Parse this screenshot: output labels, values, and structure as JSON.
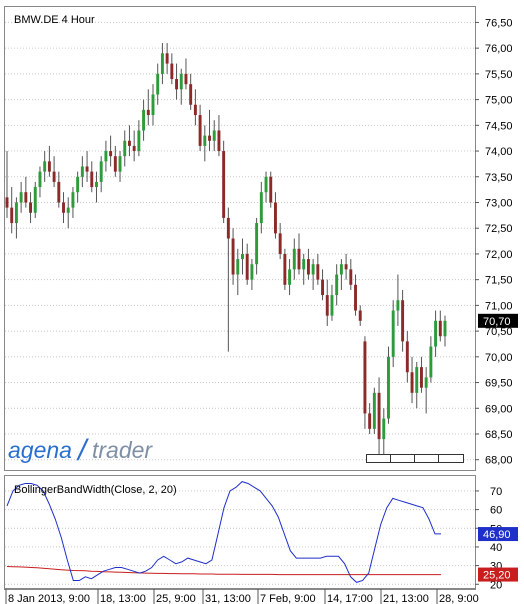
{
  "colors": {
    "up": "#2e9b3a",
    "down": "#8c2a2a",
    "bbw_line": "#1f2fc9",
    "threshold_line": "#c81e1e",
    "last_price_bg": "#000000",
    "bbw_label_bg": "#1f2fc9",
    "threshold_label_bg": "#c81e1e",
    "logo_blue": "#2a6fd0",
    "logo_gray": "#7f8fa6",
    "grid": "#c8c8c8"
  },
  "chart_data": [
    {
      "type": "candlestick",
      "title": "BMW.DE 4 Hour",
      "y_range": [
        67.8,
        76.8
      ],
      "y_ticks": [
        "76,50",
        "76,00",
        "75,50",
        "75,00",
        "74,50",
        "74,00",
        "73,50",
        "73,00",
        "72,50",
        "72,00",
        "71,50",
        "71,00",
        "70,50",
        "70,00",
        "69,50",
        "69,00",
        "68,50",
        "68,00"
      ],
      "last_price": "70,70",
      "x_labels": [
        "8 Jan 2013, 9:00",
        "18, 13:00",
        "25, 9:00",
        "31, 13:00",
        "7 Feb, 9:00",
        "14, 17:00",
        "21, 13:00",
        "28, 9:00"
      ],
      "candles": [
        {
          "o": 73.1,
          "h": 74.0,
          "l": 72.7,
          "c": 72.9
        },
        {
          "o": 72.9,
          "h": 73.3,
          "l": 72.4,
          "c": 72.6
        },
        {
          "o": 72.6,
          "h": 73.1,
          "l": 72.3,
          "c": 73.0
        },
        {
          "o": 73.0,
          "h": 73.4,
          "l": 72.8,
          "c": 73.2
        },
        {
          "o": 73.2,
          "h": 73.5,
          "l": 72.9,
          "c": 73.0
        },
        {
          "o": 73.0,
          "h": 73.2,
          "l": 72.6,
          "c": 72.8
        },
        {
          "o": 72.8,
          "h": 73.4,
          "l": 72.7,
          "c": 73.3
        },
        {
          "o": 73.3,
          "h": 73.7,
          "l": 73.1,
          "c": 73.6
        },
        {
          "o": 73.6,
          "h": 74.0,
          "l": 73.4,
          "c": 73.8
        },
        {
          "o": 73.8,
          "h": 74.1,
          "l": 73.5,
          "c": 73.6
        },
        {
          "o": 73.6,
          "h": 73.9,
          "l": 73.3,
          "c": 73.4
        },
        {
          "o": 73.4,
          "h": 73.6,
          "l": 72.9,
          "c": 73.0
        },
        {
          "o": 73.0,
          "h": 73.2,
          "l": 72.6,
          "c": 72.8
        },
        {
          "o": 72.8,
          "h": 73.1,
          "l": 72.5,
          "c": 72.9
        },
        {
          "o": 72.9,
          "h": 73.3,
          "l": 72.7,
          "c": 73.2
        },
        {
          "o": 73.2,
          "h": 73.6,
          "l": 73.0,
          "c": 73.5
        },
        {
          "o": 73.5,
          "h": 73.9,
          "l": 73.3,
          "c": 73.7
        },
        {
          "o": 73.7,
          "h": 74.0,
          "l": 73.4,
          "c": 73.6
        },
        {
          "o": 73.6,
          "h": 73.8,
          "l": 73.2,
          "c": 73.3
        },
        {
          "o": 73.3,
          "h": 73.6,
          "l": 73.0,
          "c": 73.4
        },
        {
          "o": 73.4,
          "h": 73.9,
          "l": 73.2,
          "c": 73.8
        },
        {
          "o": 73.8,
          "h": 74.2,
          "l": 73.6,
          "c": 74.0
        },
        {
          "o": 74.0,
          "h": 74.3,
          "l": 73.7,
          "c": 73.9
        },
        {
          "o": 73.9,
          "h": 74.1,
          "l": 73.5,
          "c": 73.6
        },
        {
          "o": 73.6,
          "h": 74.0,
          "l": 73.4,
          "c": 73.9
        },
        {
          "o": 73.9,
          "h": 74.4,
          "l": 73.7,
          "c": 74.2
        },
        {
          "o": 74.2,
          "h": 74.5,
          "l": 73.9,
          "c": 74.1
        },
        {
          "o": 74.1,
          "h": 74.4,
          "l": 73.8,
          "c": 74.0
        },
        {
          "o": 74.0,
          "h": 74.6,
          "l": 73.9,
          "c": 74.4
        },
        {
          "o": 74.4,
          "h": 75.0,
          "l": 74.2,
          "c": 74.8
        },
        {
          "o": 74.8,
          "h": 75.2,
          "l": 74.5,
          "c": 74.7
        },
        {
          "o": 74.7,
          "h": 75.3,
          "l": 74.5,
          "c": 75.1
        },
        {
          "o": 75.1,
          "h": 75.7,
          "l": 74.9,
          "c": 75.5
        },
        {
          "o": 75.5,
          "h": 76.1,
          "l": 75.3,
          "c": 75.9
        },
        {
          "o": 75.9,
          "h": 76.1,
          "l": 75.5,
          "c": 75.7
        },
        {
          "o": 75.7,
          "h": 75.9,
          "l": 75.3,
          "c": 75.4
        },
        {
          "o": 75.4,
          "h": 75.7,
          "l": 75.0,
          "c": 75.2
        },
        {
          "o": 75.2,
          "h": 75.6,
          "l": 74.9,
          "c": 75.5
        },
        {
          "o": 75.5,
          "h": 75.8,
          "l": 75.2,
          "c": 75.3
        },
        {
          "o": 75.3,
          "h": 75.5,
          "l": 74.8,
          "c": 74.9
        },
        {
          "o": 74.9,
          "h": 75.2,
          "l": 74.5,
          "c": 74.7
        },
        {
          "o": 74.7,
          "h": 74.9,
          "l": 74.0,
          "c": 74.1
        },
        {
          "o": 74.1,
          "h": 74.5,
          "l": 73.8,
          "c": 74.3
        },
        {
          "o": 74.3,
          "h": 74.8,
          "l": 74.0,
          "c": 74.2
        },
        {
          "o": 74.2,
          "h": 74.6,
          "l": 74.0,
          "c": 74.4
        },
        {
          "o": 74.4,
          "h": 74.7,
          "l": 73.9,
          "c": 74.0
        },
        {
          "o": 74.0,
          "h": 74.2,
          "l": 72.6,
          "c": 72.7
        },
        {
          "o": 72.7,
          "h": 72.9,
          "l": 70.1,
          "c": 72.3
        },
        {
          "o": 72.3,
          "h": 72.5,
          "l": 71.4,
          "c": 71.6
        },
        {
          "o": 71.6,
          "h": 72.1,
          "l": 71.2,
          "c": 71.9
        },
        {
          "o": 71.9,
          "h": 72.3,
          "l": 71.6,
          "c": 72.0
        },
        {
          "o": 72.0,
          "h": 72.2,
          "l": 71.4,
          "c": 71.5
        },
        {
          "o": 71.5,
          "h": 71.9,
          "l": 71.3,
          "c": 71.8
        },
        {
          "o": 71.8,
          "h": 72.7,
          "l": 71.6,
          "c": 72.6
        },
        {
          "o": 72.6,
          "h": 73.4,
          "l": 72.4,
          "c": 73.2
        },
        {
          "o": 73.2,
          "h": 73.6,
          "l": 73.0,
          "c": 73.5
        },
        {
          "o": 73.5,
          "h": 73.6,
          "l": 72.9,
          "c": 73.0
        },
        {
          "o": 73.0,
          "h": 73.2,
          "l": 72.3,
          "c": 72.4
        },
        {
          "o": 72.4,
          "h": 72.6,
          "l": 71.9,
          "c": 72.0
        },
        {
          "o": 72.0,
          "h": 72.1,
          "l": 71.3,
          "c": 71.4
        },
        {
          "o": 71.4,
          "h": 71.9,
          "l": 71.2,
          "c": 71.7
        },
        {
          "o": 71.7,
          "h": 72.3,
          "l": 71.5,
          "c": 72.1
        },
        {
          "o": 72.1,
          "h": 72.4,
          "l": 71.6,
          "c": 71.7
        },
        {
          "o": 71.7,
          "h": 72.0,
          "l": 71.4,
          "c": 71.9
        },
        {
          "o": 71.9,
          "h": 72.1,
          "l": 71.5,
          "c": 71.6
        },
        {
          "o": 71.6,
          "h": 71.9,
          "l": 71.3,
          "c": 71.8
        },
        {
          "o": 71.8,
          "h": 72.0,
          "l": 71.4,
          "c": 71.5
        },
        {
          "o": 71.5,
          "h": 71.7,
          "l": 71.1,
          "c": 71.2
        },
        {
          "o": 71.2,
          "h": 71.5,
          "l": 70.6,
          "c": 70.8
        },
        {
          "o": 70.8,
          "h": 71.4,
          "l": 70.7,
          "c": 71.2
        },
        {
          "o": 71.2,
          "h": 71.8,
          "l": 71.0,
          "c": 71.6
        },
        {
          "o": 71.6,
          "h": 71.9,
          "l": 71.3,
          "c": 71.8
        },
        {
          "o": 71.8,
          "h": 72.0,
          "l": 71.5,
          "c": 71.7
        },
        {
          "o": 71.7,
          "h": 71.9,
          "l": 71.3,
          "c": 71.4
        },
        {
          "o": 71.4,
          "h": 71.6,
          "l": 70.8,
          "c": 70.9
        },
        {
          "o": 70.9,
          "h": 71.0,
          "l": 70.6,
          "c": 70.7
        },
        {
          "o": 70.3,
          "h": 70.4,
          "l": 68.6,
          "c": 68.9
        },
        {
          "o": 68.9,
          "h": 69.1,
          "l": 68.5,
          "c": 68.6
        },
        {
          "o": 68.6,
          "h": 69.4,
          "l": 68.5,
          "c": 69.3
        },
        {
          "o": 69.3,
          "h": 69.6,
          "l": 68.0,
          "c": 68.4
        },
        {
          "o": 68.4,
          "h": 69.0,
          "l": 68.1,
          "c": 68.8
        },
        {
          "o": 68.8,
          "h": 70.2,
          "l": 68.7,
          "c": 70.0
        },
        {
          "o": 70.0,
          "h": 71.1,
          "l": 69.8,
          "c": 70.9
        },
        {
          "o": 70.9,
          "h": 71.6,
          "l": 70.6,
          "c": 71.1
        },
        {
          "o": 71.1,
          "h": 71.3,
          "l": 70.1,
          "c": 70.3
        },
        {
          "o": 70.3,
          "h": 70.5,
          "l": 69.5,
          "c": 69.7
        },
        {
          "o": 69.7,
          "h": 70.0,
          "l": 69.1,
          "c": 69.3
        },
        {
          "o": 69.3,
          "h": 69.9,
          "l": 69.0,
          "c": 69.8
        },
        {
          "o": 69.8,
          "h": 70.0,
          "l": 69.3,
          "c": 69.4
        },
        {
          "o": 69.4,
          "h": 69.8,
          "l": 68.9,
          "c": 69.6
        },
        {
          "o": 69.6,
          "h": 70.4,
          "l": 69.5,
          "c": 70.2
        },
        {
          "o": 70.2,
          "h": 70.9,
          "l": 70.0,
          "c": 70.7
        },
        {
          "o": 70.7,
          "h": 70.9,
          "l": 70.3,
          "c": 70.4
        },
        {
          "o": 70.4,
          "h": 70.8,
          "l": 70.2,
          "c": 70.7
        }
      ]
    },
    {
      "type": "line",
      "title": "BollingerBandWidth(Close, 2, 20)",
      "y_range": [
        18,
        78
      ],
      "y_ticks": [
        "70",
        "60",
        "50",
        "40",
        "30",
        "20"
      ],
      "bbw_label": "46,90",
      "threshold_label": "25,20",
      "series": [
        {
          "name": "BollingerBandWidth",
          "values": [
            62,
            70,
            73,
            74,
            74,
            73,
            70,
            63,
            55,
            45,
            33,
            22,
            22,
            24,
            23,
            25,
            27,
            28,
            29,
            29,
            28,
            27,
            26,
            27,
            29,
            33,
            35,
            33,
            31,
            32,
            34,
            33,
            32,
            31,
            33,
            47,
            61,
            70,
            72,
            75,
            74,
            72,
            70,
            66,
            62,
            56,
            47,
            38,
            34,
            34,
            34,
            34,
            34,
            35,
            35,
            35,
            31,
            24,
            21,
            22,
            26,
            39,
            52,
            61,
            66,
            65,
            64,
            63,
            62,
            61,
            55,
            47,
            47
          ]
        },
        {
          "name": "Threshold",
          "values": [
            29.5,
            29.4,
            29.3,
            29.2,
            29.0,
            28.8,
            28.6,
            28.3,
            28.0,
            27.8,
            27.6,
            27.4,
            27.3,
            27.2,
            27.0,
            26.9,
            26.7,
            26.6,
            26.5,
            26.4,
            26.3,
            26.2,
            26.1,
            26.0,
            25.9,
            25.8,
            25.8,
            25.7,
            25.7,
            25.6,
            25.6,
            25.6,
            25.5,
            25.5,
            25.5,
            25.4,
            25.4,
            25.4,
            25.4,
            25.3,
            25.3,
            25.3,
            25.3,
            25.3,
            25.3,
            25.2,
            25.2,
            25.2,
            25.2,
            25.2,
            25.2,
            25.2,
            25.2,
            25.2,
            25.2,
            25.2,
            25.2,
            25.2,
            25.2,
            25.2,
            25.2,
            25.2,
            25.2,
            25.2,
            25.2,
            25.2,
            25.2,
            25.2,
            25.2,
            25.2,
            25.2,
            25.2,
            25.2
          ]
        }
      ]
    }
  ],
  "logo": {
    "part1": "agena",
    "part2": "trader"
  }
}
